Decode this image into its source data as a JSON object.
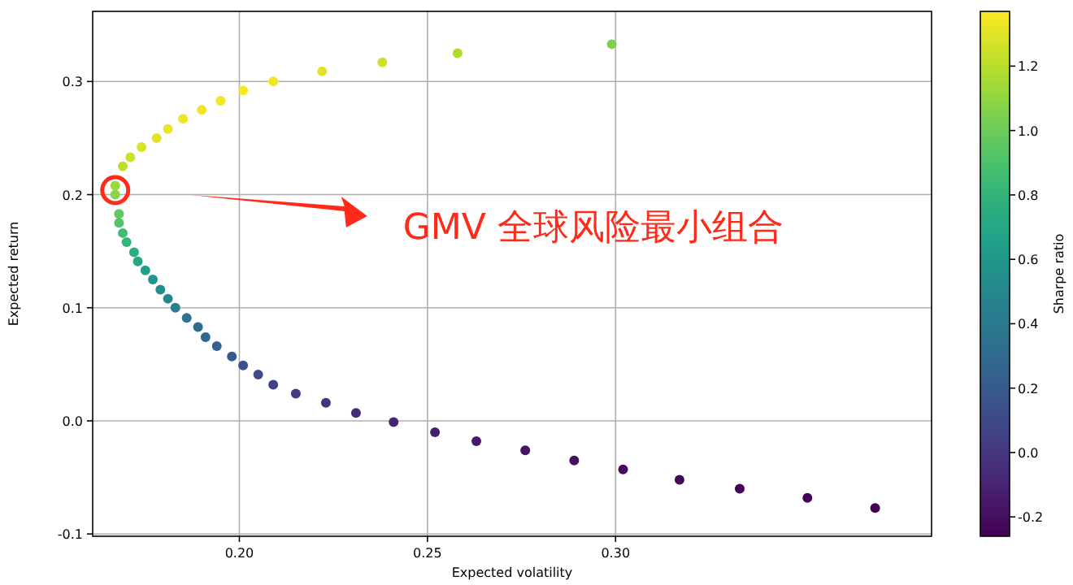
{
  "chart_data": {
    "type": "scatter",
    "xlabel": "Expected volatility",
    "ylabel": "Expected return",
    "clabel": "Sharpe ratio",
    "x": [
      0.299,
      0.258,
      0.238,
      0.222,
      0.209,
      0.201,
      0.195,
      0.19,
      0.185,
      0.181,
      0.178,
      0.174,
      0.171,
      0.169,
      0.167,
      0.167,
      0.168,
      0.168,
      0.169,
      0.17,
      0.172,
      0.173,
      0.175,
      0.177,
      0.179,
      0.181,
      0.183,
      0.186,
      0.189,
      0.191,
      0.194,
      0.198,
      0.201,
      0.205,
      0.209,
      0.215,
      0.223,
      0.231,
      0.241,
      0.252,
      0.263,
      0.276,
      0.289,
      0.302,
      0.317,
      0.333,
      0.351,
      0.369
    ],
    "values": [
      0.333,
      0.325,
      0.317,
      0.309,
      0.3,
      0.292,
      0.283,
      0.275,
      0.267,
      0.258,
      0.25,
      0.242,
      0.233,
      0.225,
      0.208,
      0.2,
      0.183,
      0.175,
      0.166,
      0.158,
      0.149,
      0.141,
      0.133,
      0.125,
      0.116,
      0.108,
      0.1,
      0.091,
      0.083,
      0.074,
      0.066,
      0.057,
      0.049,
      0.041,
      0.032,
      0.024,
      0.016,
      0.007,
      -0.001,
      -0.01,
      -0.018,
      -0.026,
      -0.035,
      -0.043,
      -0.052,
      -0.06,
      -0.068,
      -0.077
    ],
    "cvalues": [
      1.05,
      1.18,
      1.25,
      1.3,
      1.34,
      1.36,
      1.35,
      1.34,
      1.34,
      1.32,
      1.3,
      1.28,
      1.25,
      1.21,
      1.13,
      1.08,
      0.97,
      0.92,
      0.86,
      0.81,
      0.75,
      0.7,
      0.65,
      0.59,
      0.54,
      0.49,
      0.43,
      0.38,
      0.33,
      0.28,
      0.24,
      0.19,
      0.15,
      0.1,
      0.06,
      0.02,
      -0.02,
      -0.06,
      -0.09,
      -0.12,
      -0.14,
      -0.17,
      -0.19,
      -0.21,
      -0.23,
      -0.24,
      -0.25,
      -0.26
    ],
    "xlim": [
      0.161,
      0.384
    ],
    "ylim": [
      -0.102,
      0.362
    ],
    "clim": [
      -0.26,
      1.37
    ],
    "xticks": [
      {
        "value": 0.2,
        "label": "0.20"
      },
      {
        "value": 0.25,
        "label": "0.25"
      },
      {
        "value": 0.3,
        "label": "0.30"
      }
    ],
    "yticks": [
      -0.1,
      {
        "value": 0,
        "label": "0.0"
      },
      0.1,
      0.2,
      0.3
    ],
    "cticks": [
      -0.2,
      {
        "value": 0,
        "label": "0.0"
      },
      0.2,
      0.4,
      0.6,
      0.8,
      {
        "value": 1,
        "label": "1.0"
      },
      1.2
    ],
    "grid": true,
    "marker": "circle",
    "annotations": [
      "GMV 全球风险最小组合"
    ]
  }
}
